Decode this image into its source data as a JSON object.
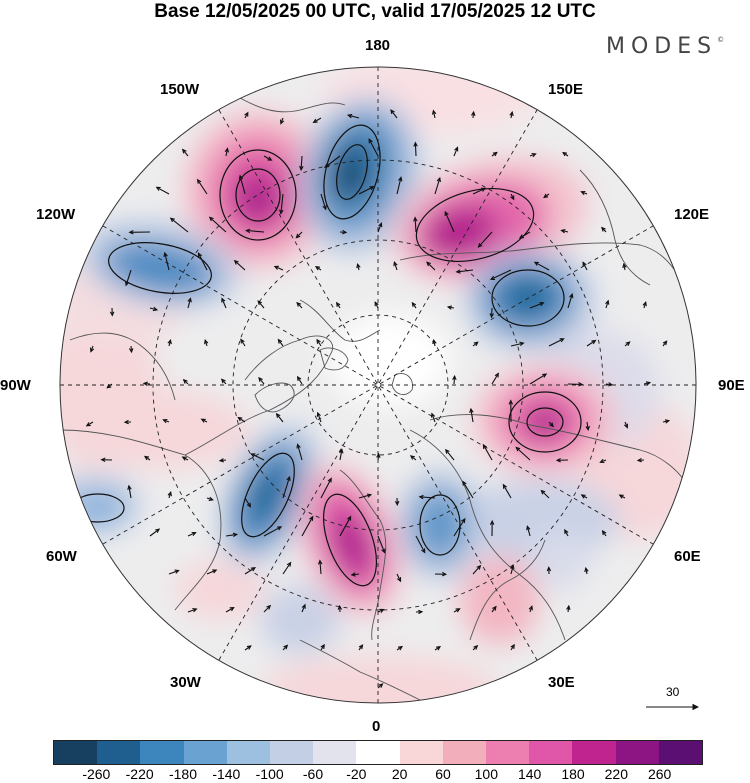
{
  "header": {
    "title": "Base 12/05/2025 00 UTC, valid 17/05/2025 12 UTC",
    "logo": "MODES",
    "logo_mark": "©"
  },
  "map": {
    "projection": "north-polar-stereographic",
    "longitude_labels": {
      "lon_180": "180",
      "lon_150e": "150E",
      "lon_120e": "120E",
      "lon_90e": "90E",
      "lon_60e": "60E",
      "lon_30e": "30E",
      "lon_0": "0",
      "lon_30w": "30W",
      "lon_60w": "60W",
      "lon_90w": "90W",
      "lon_120w": "120W",
      "lon_150w": "150W"
    },
    "reference_vector": {
      "label": "30"
    },
    "colors": {
      "coastline": "#555555",
      "graticule": "#222222",
      "vectors": "#111111"
    }
  },
  "colorbar": {
    "ticks": [
      "-260",
      "-220",
      "-180",
      "-140",
      "-100",
      "-60",
      "-20",
      "20",
      "60",
      "100",
      "140",
      "180",
      "220",
      "260"
    ],
    "colors": [
      "#173f5f",
      "#1f5f8f",
      "#3d85bd",
      "#6aa3d1",
      "#9dbfe0",
      "#c2cfe5",
      "#e3e3ee",
      "#ffffff",
      "#f9d6d8",
      "#f3aebc",
      "#ec7fb0",
      "#e056a8",
      "#c0248f",
      "#8c1583",
      "#5b0f73"
    ]
  }
}
